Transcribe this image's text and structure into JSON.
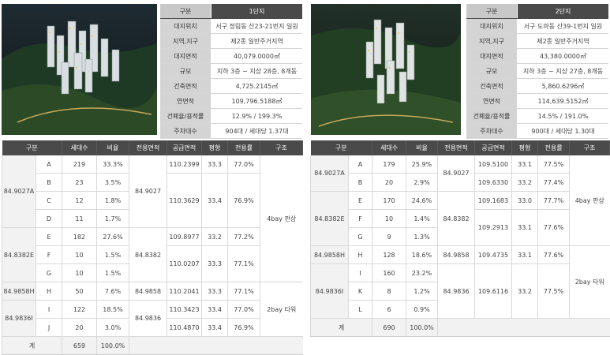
{
  "complex1": {
    "info_header": [
      "구분",
      "1단지"
    ],
    "info_rows": [
      [
        "대지위치",
        "서구 정림동 산23-21번지 일원"
      ],
      [
        "지역,지구",
        "제2종 일반주거지역"
      ],
      [
        "대지면적",
        "40,079.0000㎡"
      ],
      [
        "규모",
        "지하 3층 ~ 지상 28층, 8개동"
      ],
      [
        "건축면적",
        "4,725.2145㎡"
      ],
      [
        "연면적",
        "109,796.5188㎡"
      ],
      [
        "건폐율/용적률",
        "12.9% / 199.3%"
      ],
      [
        "주차대수",
        "904대 / 세대당 1.37대"
      ]
    ],
    "unit_headers": [
      "구분",
      "세대수",
      "비율",
      "전용면적",
      "공급면적",
      "평형",
      "전용률",
      "구조"
    ],
    "units": {
      "type_a": "84.9027A",
      "type_e": "84.8382E",
      "type_h": "84.9858H",
      "type_i": "84.9836I",
      "excl_a": "84.9027",
      "excl_e": "84.8382",
      "excl_h": "84.9858",
      "excl_i": "84.9836",
      "rows": {
        "a": {
          "sub": "A",
          "count": "219",
          "ratio": "33.3%",
          "supply": "110.2399",
          "pyeong": "33.3",
          "rate": "77.0%"
        },
        "b": {
          "sub": "B",
          "count": "23",
          "ratio": "3.5%"
        },
        "c": {
          "sub": "C",
          "count": "12",
          "ratio": "1.8%",
          "supply": "110.3629",
          "pyeong": "33.4",
          "rate": "76.9%"
        },
        "d": {
          "sub": "D",
          "count": "11",
          "ratio": "1.7%"
        },
        "e": {
          "sub": "E",
          "count": "182",
          "ratio": "27.6%",
          "supply": "109.8977",
          "pyeong": "33.2",
          "rate": "77.2%"
        },
        "f": {
          "sub": "F",
          "count": "10",
          "ratio": "1.5%",
          "supply": "110.0207",
          "pyeong": "33.3",
          "rate": "77.1%"
        },
        "g": {
          "sub": "G",
          "count": "10",
          "ratio": "1.5%"
        },
        "h": {
          "sub": "H",
          "count": "50",
          "ratio": "7.6%",
          "supply": "110.2041",
          "pyeong": "33.3",
          "rate": "77.1%"
        },
        "i": {
          "sub": "I",
          "count": "122",
          "ratio": "18.5%",
          "supply": "110.3423",
          "pyeong": "33.4",
          "rate": "77.0%"
        },
        "j": {
          "sub": "J",
          "count": "20",
          "ratio": "3.0%",
          "supply": "110.4870",
          "pyeong": "33.4",
          "rate": "76.9%"
        }
      },
      "struct_1": "4bay 판상",
      "struct_2": "2bay 타워",
      "total_label": "계",
      "total_count": "659",
      "total_ratio": "100.0%"
    }
  },
  "complex2": {
    "info_header": [
      "구분",
      "2단지"
    ],
    "info_rows": [
      [
        "대지위치",
        "서구 도마동 산39-1번지 일원"
      ],
      [
        "지역,지구",
        "제2종 일반주거지역"
      ],
      [
        "대지면적",
        "43,380.0000㎡"
      ],
      [
        "규모",
        "지하 3층 ~ 지상 27층, 8개동"
      ],
      [
        "건축면적",
        "5,860.6296㎡"
      ],
      [
        "연면적",
        "114,639.5152㎡"
      ],
      [
        "건폐율/용적률",
        "14.5% / 191.0%"
      ],
      [
        "주차대수",
        "900대 / 세대당 1.30대"
      ]
    ],
    "unit_headers": [
      "구분",
      "세대수",
      "비율",
      "전용면적",
      "공급면적",
      "평형",
      "전용률",
      "구조"
    ],
    "units": {
      "type_a": "84.9027A",
      "type_e": "84.8382E",
      "type_h": "84.9858H",
      "type_i": "84.9836I",
      "excl_a": "84.9027",
      "excl_e": "84.8382",
      "excl_h": "84.9858",
      "excl_i": "84.9836",
      "rows": {
        "a": {
          "sub": "A",
          "count": "179",
          "ratio": "25.9%",
          "supply": "109.5100",
          "pyeong": "33.1",
          "rate": "77.5%"
        },
        "b": {
          "sub": "B",
          "count": "20",
          "ratio": "2.9%",
          "supply": "109.6330",
          "pyeong": "33.2",
          "rate": "77.4%"
        },
        "e": {
          "sub": "E",
          "count": "170",
          "ratio": "24.6%",
          "supply": "109.1683",
          "pyeong": "33.0",
          "rate": "77.7%"
        },
        "f": {
          "sub": "F",
          "count": "10",
          "ratio": "1.4%",
          "supply": "109.2913",
          "pyeong": "33.1",
          "rate": "77.6%"
        },
        "g": {
          "sub": "G",
          "count": "9",
          "ratio": "1.3%"
        },
        "h": {
          "sub": "H",
          "count": "128",
          "ratio": "18.6%",
          "supply": "109.4735",
          "pyeong": "33.1",
          "rate": "77.6%"
        },
        "i": {
          "sub": "I",
          "count": "160",
          "ratio": "23.2%",
          "supply": "109.6116",
          "pyeong": "33.2",
          "rate": "77.5%"
        },
        "k": {
          "sub": "K",
          "count": "8",
          "ratio": "1.2%"
        },
        "l": {
          "sub": "L",
          "count": "6",
          "ratio": "0.9%"
        }
      },
      "struct_1": "4bay 판상",
      "struct_2": "2bay 타워",
      "total_label": "계",
      "total_count": "690",
      "total_ratio": "100.0%"
    }
  }
}
